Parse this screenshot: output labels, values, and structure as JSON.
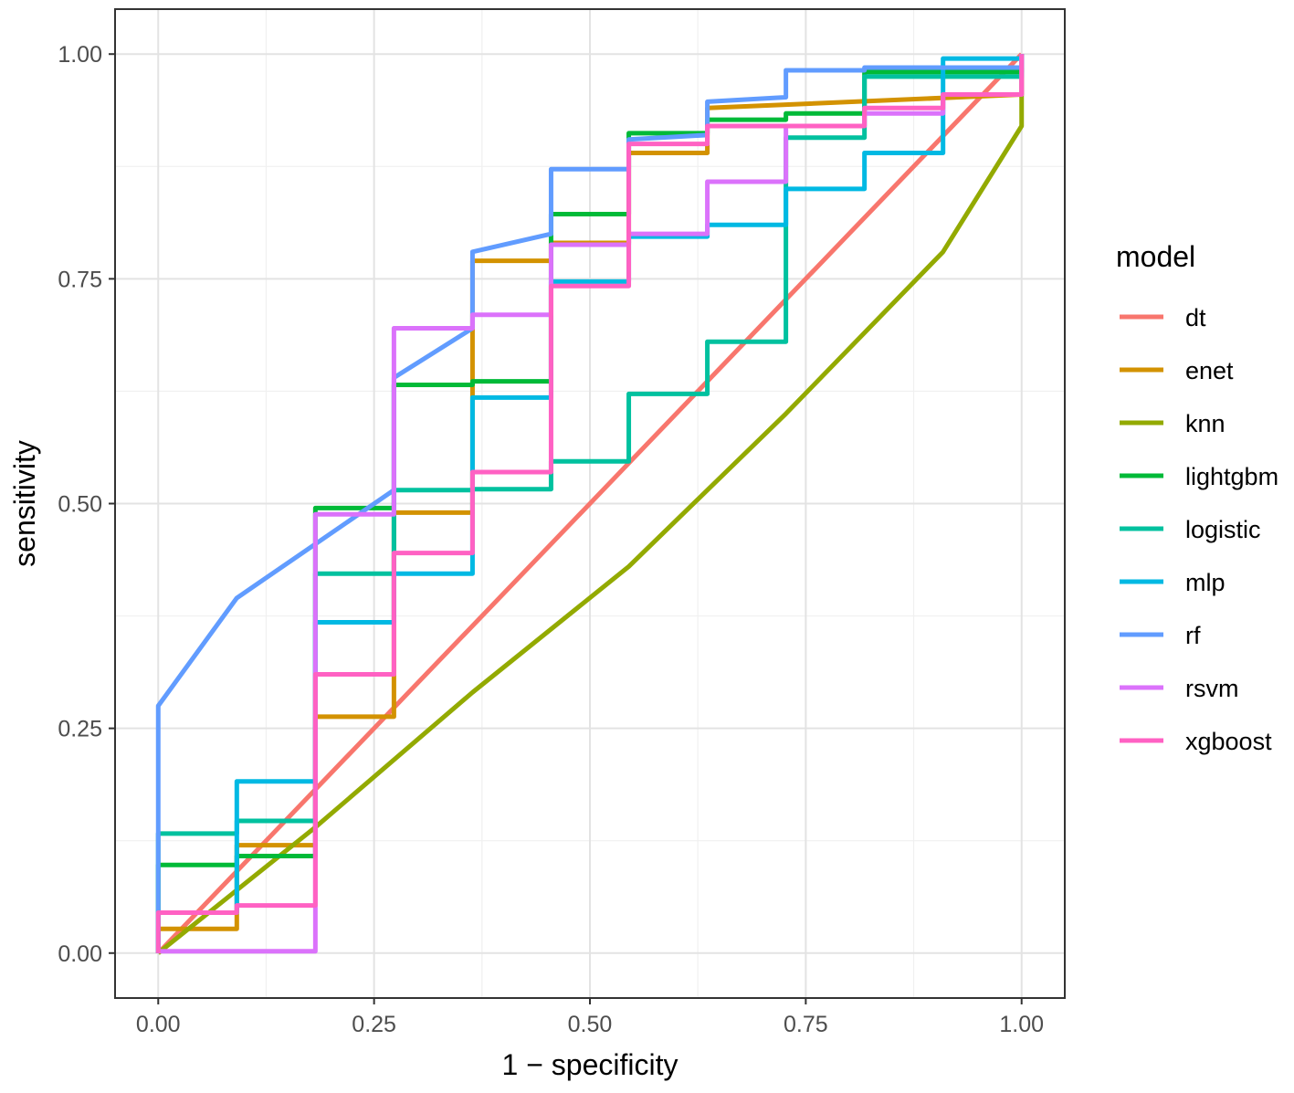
{
  "chart_data": {
    "type": "line",
    "xlabel": "1 − specificity",
    "ylabel": "sensitivity",
    "xlim": [
      -0.05,
      1.05
    ],
    "ylim": [
      -0.05,
      1.05
    ],
    "x_ticks": [
      "0.00",
      "0.25",
      "0.50",
      "0.75",
      "1.00"
    ],
    "y_ticks": [
      "0.00",
      "0.25",
      "0.50",
      "0.75",
      "1.00"
    ],
    "grid": true,
    "legend_title": "model",
    "legend_position": "right",
    "series": [
      {
        "name": "dt",
        "color": "#F8766D",
        "points": [
          [
            0,
            0
          ],
          [
            1,
            1
          ]
        ]
      },
      {
        "name": "enet",
        "color": "#D39200",
        "points": [
          [
            0,
            0
          ],
          [
            0,
            0.027
          ],
          [
            0.091,
            0.027
          ],
          [
            0.091,
            0.12
          ],
          [
            0.182,
            0.12
          ],
          [
            0.182,
            0.263
          ],
          [
            0.273,
            0.263
          ],
          [
            0.273,
            0.49
          ],
          [
            0.364,
            0.49
          ],
          [
            0.364,
            0.77
          ],
          [
            0.455,
            0.77
          ],
          [
            0.455,
            0.79
          ],
          [
            0.545,
            0.79
          ],
          [
            0.545,
            0.89
          ],
          [
            0.636,
            0.89
          ],
          [
            0.636,
            0.94
          ],
          [
            1,
            0.955
          ],
          [
            1,
            1
          ]
        ]
      },
      {
        "name": "knn",
        "color": "#93AA00",
        "points": [
          [
            0,
            0
          ],
          [
            0.182,
            0.14
          ],
          [
            0.364,
            0.29
          ],
          [
            0.545,
            0.43
          ],
          [
            0.727,
            0.6
          ],
          [
            0.909,
            0.78
          ],
          [
            1,
            0.92
          ],
          [
            1,
            1
          ]
        ]
      },
      {
        "name": "lightgbm",
        "color": "#00BA38",
        "points": [
          [
            0,
            0
          ],
          [
            0,
            0.098
          ],
          [
            0.091,
            0.098
          ],
          [
            0.091,
            0.108
          ],
          [
            0.182,
            0.108
          ],
          [
            0.182,
            0.495
          ],
          [
            0.273,
            0.495
          ],
          [
            0.273,
            0.632
          ],
          [
            0.364,
            0.632
          ],
          [
            0.364,
            0.636
          ],
          [
            0.455,
            0.636
          ],
          [
            0.455,
            0.822
          ],
          [
            0.545,
            0.822
          ],
          [
            0.545,
            0.912
          ],
          [
            0.636,
            0.912
          ],
          [
            0.636,
            0.927
          ],
          [
            0.727,
            0.927
          ],
          [
            0.727,
            0.934
          ],
          [
            0.818,
            0.934
          ],
          [
            0.818,
            0.98
          ],
          [
            1,
            0.98
          ],
          [
            1,
            1
          ]
        ]
      },
      {
        "name": "logistic",
        "color": "#00C19F",
        "points": [
          [
            0,
            0
          ],
          [
            0,
            0.133
          ],
          [
            0.091,
            0.133
          ],
          [
            0.091,
            0.147
          ],
          [
            0.182,
            0.147
          ],
          [
            0.182,
            0.422
          ],
          [
            0.273,
            0.422
          ],
          [
            0.273,
            0.515
          ],
          [
            0.364,
            0.515
          ],
          [
            0.364,
            0.516
          ],
          [
            0.455,
            0.516
          ],
          [
            0.455,
            0.547
          ],
          [
            0.545,
            0.547
          ],
          [
            0.545,
            0.622
          ],
          [
            0.636,
            0.622
          ],
          [
            0.636,
            0.68
          ],
          [
            0.727,
            0.68
          ],
          [
            0.727,
            0.907
          ],
          [
            0.818,
            0.907
          ],
          [
            0.818,
            0.975
          ],
          [
            1,
            0.975
          ],
          [
            1,
            1
          ]
        ]
      },
      {
        "name": "mlp",
        "color": "#00B9E3",
        "points": [
          [
            0,
            0
          ],
          [
            0,
            0.045
          ],
          [
            0.091,
            0.045
          ],
          [
            0.091,
            0.191
          ],
          [
            0.182,
            0.191
          ],
          [
            0.182,
            0.368
          ],
          [
            0.273,
            0.368
          ],
          [
            0.273,
            0.422
          ],
          [
            0.364,
            0.422
          ],
          [
            0.364,
            0.618
          ],
          [
            0.455,
            0.618
          ],
          [
            0.455,
            0.747
          ],
          [
            0.545,
            0.747
          ],
          [
            0.545,
            0.797
          ],
          [
            0.636,
            0.797
          ],
          [
            0.636,
            0.81
          ],
          [
            0.727,
            0.81
          ],
          [
            0.727,
            0.85
          ],
          [
            0.818,
            0.85
          ],
          [
            0.818,
            0.89
          ],
          [
            0.909,
            0.89
          ],
          [
            0.909,
            0.995
          ],
          [
            1,
            0.995
          ],
          [
            1,
            1
          ]
        ]
      },
      {
        "name": "rf",
        "color": "#619CFF",
        "points": [
          [
            0,
            0
          ],
          [
            0,
            0.275
          ],
          [
            0.091,
            0.395
          ],
          [
            0.182,
            0.455
          ],
          [
            0.273,
            0.515
          ],
          [
            0.273,
            0.64
          ],
          [
            0.364,
            0.695
          ],
          [
            0.364,
            0.78
          ],
          [
            0.455,
            0.8
          ],
          [
            0.455,
            0.872
          ],
          [
            0.545,
            0.872
          ],
          [
            0.545,
            0.905
          ],
          [
            0.636,
            0.91
          ],
          [
            0.636,
            0.947
          ],
          [
            0.727,
            0.952
          ],
          [
            0.727,
            0.982
          ],
          [
            0.818,
            0.982
          ],
          [
            0.818,
            0.985
          ],
          [
            1,
            0.985
          ],
          [
            1,
            1
          ]
        ]
      },
      {
        "name": "rsvm",
        "color": "#DB72FB",
        "points": [
          [
            0,
            0
          ],
          [
            0,
            0.002
          ],
          [
            0.182,
            0.002
          ],
          [
            0.182,
            0.488
          ],
          [
            0.273,
            0.488
          ],
          [
            0.273,
            0.695
          ],
          [
            0.364,
            0.695
          ],
          [
            0.364,
            0.71
          ],
          [
            0.455,
            0.71
          ],
          [
            0.455,
            0.788
          ],
          [
            0.545,
            0.788
          ],
          [
            0.545,
            0.8
          ],
          [
            0.636,
            0.8
          ],
          [
            0.636,
            0.858
          ],
          [
            0.727,
            0.858
          ],
          [
            0.727,
            0.92
          ],
          [
            0.818,
            0.92
          ],
          [
            0.818,
            0.934
          ],
          [
            0.909,
            0.934
          ],
          [
            0.909,
            0.955
          ],
          [
            1,
            0.955
          ],
          [
            1,
            1
          ]
        ]
      },
      {
        "name": "xgboost",
        "color": "#FF61C3",
        "points": [
          [
            0,
            0
          ],
          [
            0,
            0.045
          ],
          [
            0.091,
            0.045
          ],
          [
            0.091,
            0.053
          ],
          [
            0.182,
            0.053
          ],
          [
            0.182,
            0.31
          ],
          [
            0.273,
            0.31
          ],
          [
            0.273,
            0.445
          ],
          [
            0.364,
            0.445
          ],
          [
            0.364,
            0.535
          ],
          [
            0.455,
            0.535
          ],
          [
            0.455,
            0.742
          ],
          [
            0.545,
            0.742
          ],
          [
            0.545,
            0.9
          ],
          [
            0.636,
            0.9
          ],
          [
            0.636,
            0.92
          ],
          [
            0.818,
            0.92
          ],
          [
            0.818,
            0.94
          ],
          [
            0.909,
            0.94
          ],
          [
            0.909,
            0.955
          ],
          [
            1,
            0.955
          ],
          [
            1,
            1
          ]
        ]
      }
    ]
  }
}
